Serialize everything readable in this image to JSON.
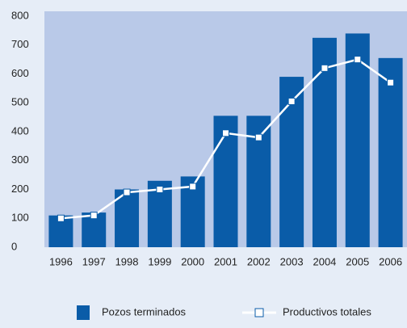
{
  "chart_data": {
    "type": "bar_line",
    "categories": [
      "1996",
      "1997",
      "1998",
      "1999",
      "2000",
      "2001",
      "2002",
      "2003",
      "2004",
      "2005",
      "2006"
    ],
    "series": [
      {
        "name": "Pozos terminados",
        "type": "bar",
        "color": "#0a5ca8",
        "values": [
          110,
          120,
          200,
          230,
          245,
          455,
          455,
          590,
          725,
          740,
          655
        ]
      },
      {
        "name": "Productivos totales",
        "type": "line",
        "color": "#ffffff",
        "values": [
          100,
          110,
          190,
          200,
          210,
          395,
          380,
          505,
          620,
          650,
          570
        ]
      }
    ],
    "ylim": [
      0,
      800
    ],
    "yticks": [
      0,
      100,
      200,
      300,
      400,
      500,
      600,
      700,
      800
    ],
    "grid": false
  }
}
